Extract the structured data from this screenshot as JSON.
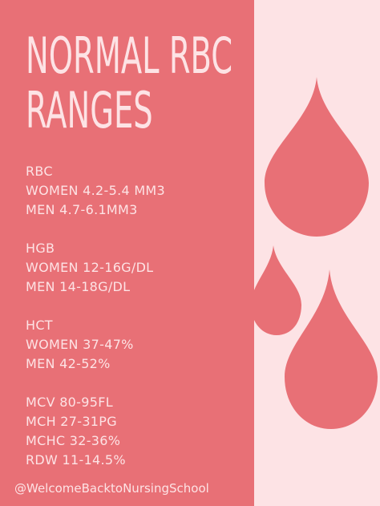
{
  "title": {
    "line1": "NORMAL RBC",
    "line2": "RANGES"
  },
  "sections": {
    "rbc": {
      "heading": "RBC",
      "women": "WOMEN 4.2-5.4 MM3",
      "men": "MEN 4.7-6.1MM3"
    },
    "hgb": {
      "heading": "HGB",
      "women": "WOMEN 12-16G/DL",
      "men": "MEN 14-18G/DL"
    },
    "hct": {
      "heading": "HCT",
      "women": "WOMEN 37-47%",
      "men": "MEN 42-52%"
    },
    "indices": {
      "mcv": "MCV 80-95FL",
      "mch": "MCH 27-31PG",
      "mchc": "MCHC 32-36%",
      "rdw": "RDW 11-14.5%"
    }
  },
  "footer": {
    "handle": "@WelcomeBacktoNursingSchool"
  },
  "colors": {
    "left_panel": "#e87076",
    "right_panel": "#fde3e5",
    "text": "#fde3e5",
    "drop": "#e87076"
  },
  "decorations": {
    "drop_icon": "blood-drop-icon"
  }
}
